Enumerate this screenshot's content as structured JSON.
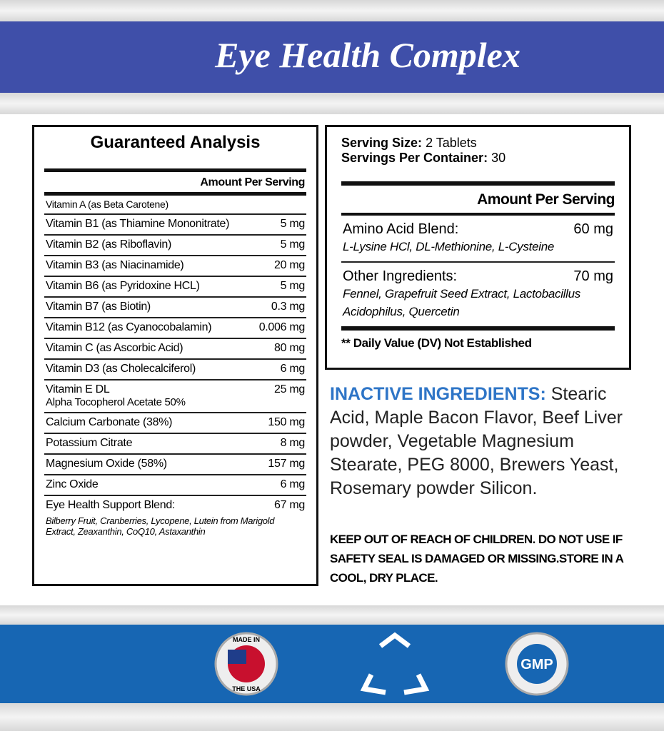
{
  "header": {
    "title": "Eye Health Complex"
  },
  "analysis": {
    "title": "Guaranteed Analysis",
    "column_header": "Amount Per Serving",
    "rows": [
      {
        "name": "Vitamin A (as Beta Carotene)"
      },
      {
        "name": "Vitamin B1 (as Thiamine Mononitrate)",
        "amount": "5 mg"
      },
      {
        "name": "Vitamin B2 (as Riboflavin)",
        "amount": "5 mg"
      },
      {
        "name": "Vitamin B3 (as Niacinamide)",
        "amount": "20 mg"
      },
      {
        "name": "Vitamin B6 (as Pyridoxine HCL)",
        "amount": "5 mg"
      },
      {
        "name": "Vitamin B7 (as Biotin)",
        "amount": "0.3 mg"
      },
      {
        "name": "Vitamin B12 (as Cyanocobalamin)",
        "amount": "0.006 mg"
      },
      {
        "name": "Vitamin C (as Ascorbic Acid)",
        "amount": "80 mg"
      },
      {
        "name": "Vitamin D3 (as Cholecalciferol)",
        "amount": "6 mg"
      },
      {
        "name": "Vitamin E DL",
        "amount": "25 mg",
        "note": "Alpha Tocopherol Acetate 50%"
      },
      {
        "name": "Calcium Carbonate (38%)",
        "amount": "150 mg"
      },
      {
        "name": "Potassium Citrate",
        "amount": "8 mg"
      },
      {
        "name": "Magnesium Oxide (58%)",
        "amount": "157 mg"
      },
      {
        "name": "Zinc Oxide",
        "amount": "6 mg"
      },
      {
        "name": "Eye Health Support Blend:",
        "amount": "67 mg",
        "detail": "Bilberry Fruit, Cranberries, Lycopene, Lutein from Marigold Extract, Zeaxanthin, CoQ10, Astaxanthin"
      }
    ]
  },
  "facts": {
    "serving_size_label": "Serving Size:",
    "serving_size": "2 Tablets",
    "servings_label": "Servings Per Container:",
    "servings": "30",
    "column_header": "Amount Per Serving",
    "items": [
      {
        "name": "Amino Acid Blend:",
        "amount": "60 mg",
        "detail": "L-Lysine HCl, DL-Methionine, L-Cysteine"
      },
      {
        "name": "Other Ingredients:",
        "amount": "70 mg",
        "detail": "Fennel, Grapefruit Seed Extract, Lactobacillus Acidophilus, Quercetin"
      }
    ],
    "footnote": "** Daily Value (DV) Not Established"
  },
  "inactive": {
    "label": "INACTIVE INGREDIENTS:",
    "text": "Stearic Acid, Maple Bacon Flavor, Beef Liver powder, Vegetable Magnesium Stearate, PEG 8000, Brewers Yeast, Rosemary powder Silicon."
  },
  "warning": "KEEP OUT OF REACH OF CHILDREN. DO NOT USE IF SAFETY SEAL IS DAMAGED OR MISSING.STORE IN A COOL, DRY PLACE.",
  "badges": {
    "made_in": "MADE IN",
    "usa": "THE USA",
    "gmp": "GMP"
  }
}
